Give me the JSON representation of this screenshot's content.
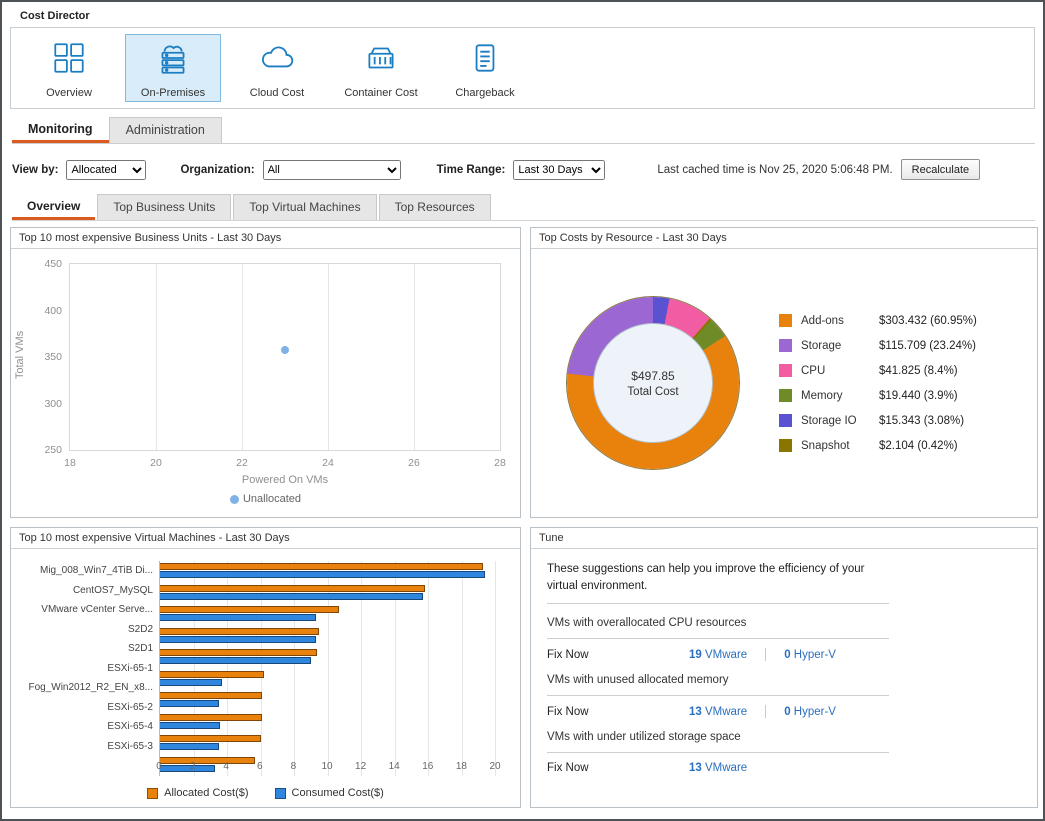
{
  "app": {
    "title": "Cost Director"
  },
  "nav": {
    "items": [
      {
        "label": "Overview",
        "icon": "grid-icon",
        "selected": false
      },
      {
        "label": "On-Premises",
        "icon": "server-cloud-icon",
        "selected": true
      },
      {
        "label": "Cloud Cost",
        "icon": "cloud-icon",
        "selected": false
      },
      {
        "label": "Container Cost",
        "icon": "container-icon",
        "selected": false
      },
      {
        "label": "Chargeback",
        "icon": "ledger-icon",
        "selected": false
      }
    ]
  },
  "tabs": {
    "items": [
      {
        "label": "Monitoring",
        "active": true
      },
      {
        "label": "Administration",
        "active": false
      }
    ]
  },
  "filters": {
    "view_by_label": "View by:",
    "view_by_value": "Allocated",
    "organization_label": "Organization:",
    "organization_value": "All",
    "time_range_label": "Time Range:",
    "time_range_value": "Last 30 Days",
    "cached_text": "Last cached time is Nov 25, 2020 5:06:48 PM.",
    "recalculate_label": "Recalculate"
  },
  "subtabs": {
    "items": [
      "Overview",
      "Top Business Units",
      "Top Virtual Machines",
      "Top Resources"
    ],
    "active": "Overview"
  },
  "panels": {
    "business_units": {
      "title": "Top 10 most expensive Business Units - Last 30 Days"
    },
    "resources": {
      "title": "Top Costs by Resource - Last 30 Days"
    },
    "virtual_machines": {
      "title": "Top 10 most expensive Virtual Machines - Last 30 Days"
    },
    "tune": {
      "title": "Tune",
      "intro": "These suggestions can help you improve the efficiency of your virtual environment.",
      "sections": [
        {
          "heading": "VMs with overallocated CPU resources",
          "fix_label": "Fix Now",
          "links": [
            {
              "count": "19",
              "label": "VMware"
            },
            {
              "count": "0",
              "label": "Hyper-V"
            }
          ]
        },
        {
          "heading": "VMs with unused allocated memory",
          "fix_label": "Fix Now",
          "links": [
            {
              "count": "13",
              "label": "VMware"
            },
            {
              "count": "0",
              "label": "Hyper-V"
            }
          ]
        },
        {
          "heading": "VMs with under utilized storage space",
          "fix_label": "Fix Now",
          "links": [
            {
              "count": "13",
              "label": "VMware"
            }
          ]
        }
      ]
    }
  },
  "chart_data": [
    {
      "type": "scatter",
      "title": "Top 10 most expensive Business Units - Last 30 Days",
      "xlabel": "Powered On VMs",
      "ylabel": "Total VMs",
      "xlim": [
        18,
        28
      ],
      "ylim": [
        250,
        450
      ],
      "xticks": [
        18,
        20,
        22,
        24,
        26,
        28
      ],
      "yticks": [
        250,
        300,
        350,
        400,
        450
      ],
      "grid": true,
      "legend_position": "bottom",
      "series": [
        {
          "name": "Unallocated",
          "color": "#7fb2e5",
          "points": [
            {
              "x": 23,
              "y": 357
            }
          ]
        }
      ]
    },
    {
      "type": "pie",
      "title": "Top Costs by Resource - Last 30 Days",
      "center_value": "$497.85",
      "center_label": "Total Cost",
      "slices": [
        {
          "name": "Add-ons",
          "value_label": "$303.432 (60.95%)",
          "percent": 60.95,
          "color": "#e8820d"
        },
        {
          "name": "Storage",
          "value_label": "$115.709 (23.24%)",
          "percent": 23.24,
          "color": "#9a67d3"
        },
        {
          "name": "CPU",
          "value_label": "$41.825 (8.4%)",
          "percent": 8.4,
          "color": "#f25ca2"
        },
        {
          "name": "Memory",
          "value_label": "$19.440 (3.9%)",
          "percent": 3.9,
          "color": "#6f8b27"
        },
        {
          "name": "Storage IO",
          "value_label": "$15.343 (3.08%)",
          "percent": 3.08,
          "color": "#5a52d0"
        },
        {
          "name": "Snapshot",
          "value_label": "$2.104 (0.42%)",
          "percent": 0.42,
          "color": "#8a7500"
        }
      ],
      "draw_order_from_top": [
        "Storage IO",
        "CPU",
        "Snapshot",
        "Memory",
        "Add-ons",
        "Storage"
      ],
      "legend_position": "right"
    },
    {
      "type": "bar",
      "orientation": "horizontal",
      "title": "Top 10 most expensive Virtual Machines - Last 30 Days",
      "categories": [
        "Mig_008_Win7_4TiB Di...",
        "CentOS7_MySQL",
        "VMware vCenter Serve...",
        "S2D2",
        "S2D1",
        "ESXi-65-1",
        "Fog_Win2012_R2_EN_x8...",
        "ESXi-65-2",
        "ESXi-65-4",
        "ESXi-65-3"
      ],
      "series": [
        {
          "name": "Allocated Cost($)",
          "color": "#e8820d",
          "values": [
            19.3,
            15.8,
            10.7,
            9.5,
            9.4,
            6.2,
            6.1,
            6.1,
            6.0,
            5.7
          ]
        },
        {
          "name": "Consumed Cost($)",
          "color": "#2e86de",
          "values": [
            19.4,
            15.7,
            9.3,
            9.3,
            9.0,
            3.7,
            3.5,
            3.6,
            3.5,
            3.3
          ]
        }
      ],
      "xlim": [
        0,
        20
      ],
      "xticks": [
        0,
        2,
        4,
        6,
        8,
        10,
        12,
        14,
        16,
        18,
        20
      ],
      "grid": true,
      "legend_position": "bottom"
    }
  ]
}
